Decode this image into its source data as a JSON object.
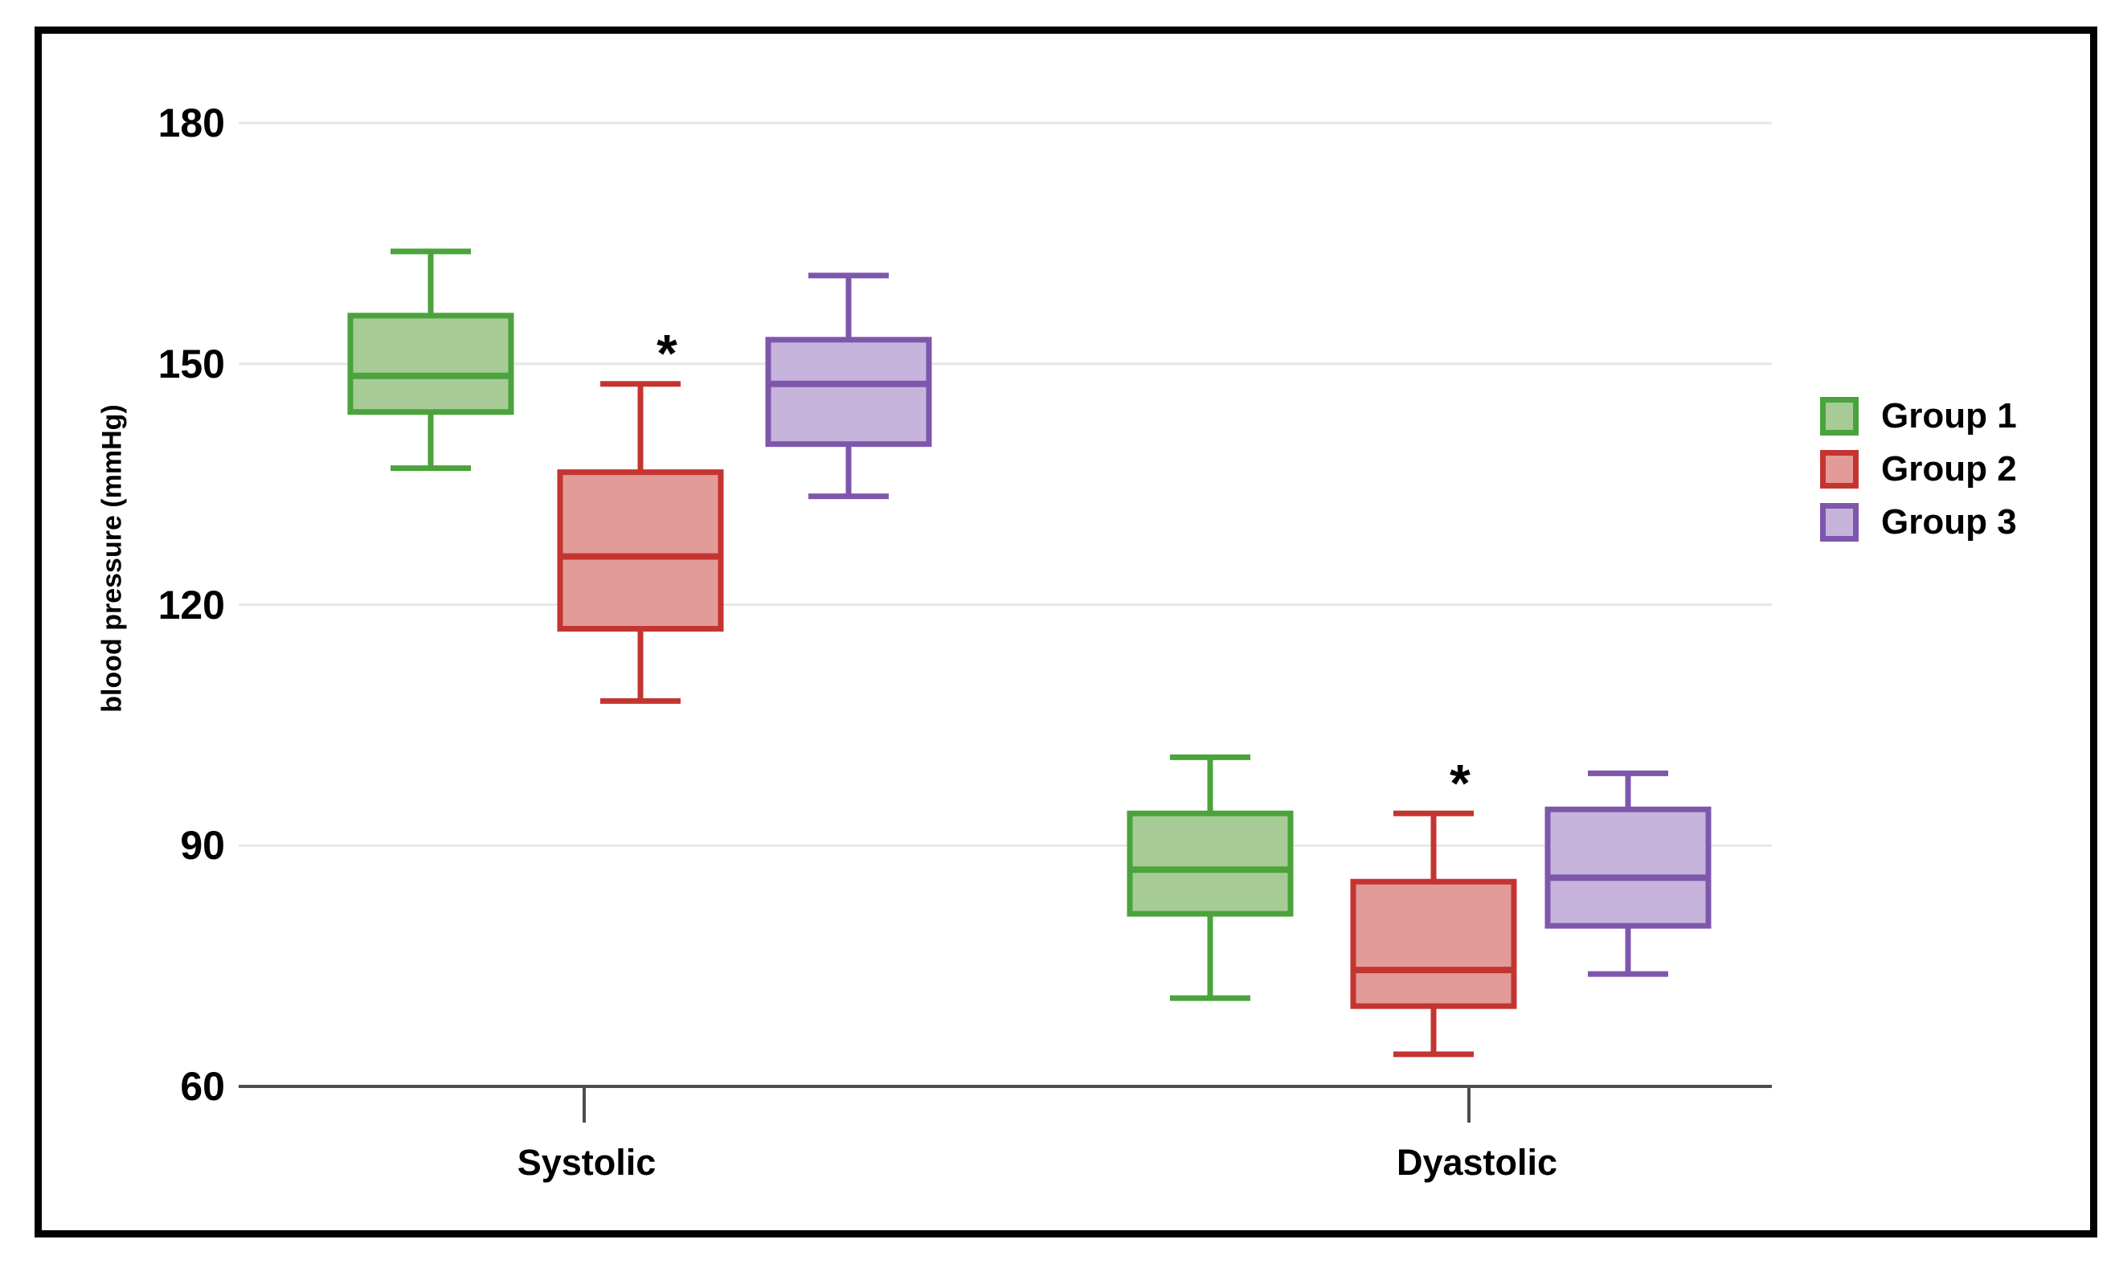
{
  "frame": {
    "border_color": "#000000",
    "background": "#ffffff"
  },
  "chart_data": {
    "type": "boxplot",
    "title": "",
    "ylabel": "blood pressure (mmHg)",
    "xlabel": "",
    "categories": [
      "Systolic",
      "Dyastolic"
    ],
    "yticks": [
      180,
      150,
      120,
      90,
      60
    ],
    "ylim": [
      60,
      180
    ],
    "grid": "horizontal-light",
    "legend_position": "right",
    "axis_color": "#4d4d4d",
    "gridline_color": "#e7e7e7",
    "text_color": "#000000",
    "annotation_symbol": "*",
    "series": [
      {
        "name": "Group 1",
        "border_color": "#4ba33b",
        "fill_color": "#a7cb96",
        "boxes": [
          {
            "category": "Systolic",
            "min": 137,
            "q1": 144,
            "median": 148.5,
            "q3": 156,
            "max": 164,
            "annotation": ""
          },
          {
            "category": "Dyastolic",
            "min": 71,
            "q1": 81.5,
            "median": 87,
            "q3": 94,
            "max": 101,
            "annotation": ""
          }
        ]
      },
      {
        "name": "Group 2",
        "border_color": "#c43531",
        "fill_color": "#e29b97",
        "boxes": [
          {
            "category": "Systolic",
            "min": 108,
            "q1": 117,
            "median": 126,
            "q3": 136.5,
            "max": 147.5,
            "annotation": "*"
          },
          {
            "category": "Dyastolic",
            "min": 64,
            "q1": 70,
            "median": 74.5,
            "q3": 85.5,
            "max": 94,
            "annotation": "*"
          }
        ]
      },
      {
        "name": "Group 3",
        "border_color": "#7e57ad",
        "fill_color": "#c6b4dc",
        "boxes": [
          {
            "category": "Systolic",
            "min": 133.5,
            "q1": 140,
            "median": 147.5,
            "q3": 153,
            "max": 161,
            "annotation": ""
          },
          {
            "category": "Dyastolic",
            "min": 74,
            "q1": 80,
            "median": 86,
            "q3": 94.5,
            "max": 99,
            "annotation": ""
          }
        ]
      }
    ]
  }
}
